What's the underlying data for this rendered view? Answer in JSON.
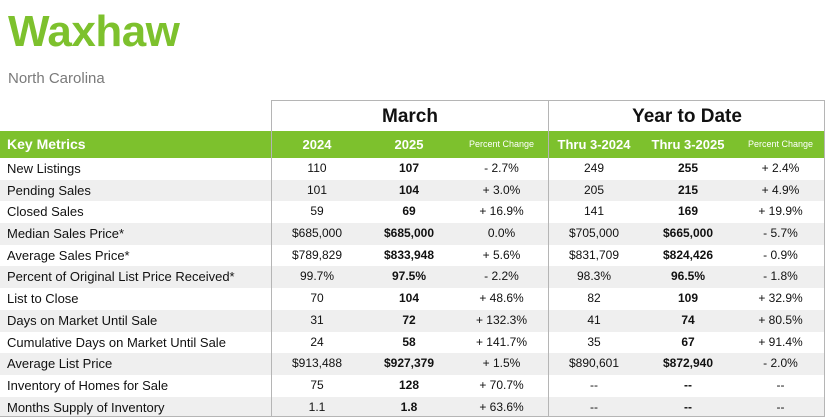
{
  "header": {
    "title": "Waxhaw",
    "subtitle": "North Carolina"
  },
  "groups": {
    "march": "March",
    "ytd": "Year to Date"
  },
  "columns": {
    "key": "Key Metrics",
    "m_2024": "2024",
    "m_2025": "2025",
    "m_pct": "Percent Change",
    "y_2024": "Thru 3-2024",
    "y_2025": "Thru 3-2025",
    "y_pct": "Percent Change"
  },
  "rows": [
    {
      "label": "New Listings",
      "m24": "110",
      "m25": "107",
      "mpct": "- 2.7%",
      "y24": "249",
      "y25": "255",
      "ypct": "+ 2.4%"
    },
    {
      "label": "Pending Sales",
      "m24": "101",
      "m25": "104",
      "mpct": "+ 3.0%",
      "y24": "205",
      "y25": "215",
      "ypct": "+ 4.9%"
    },
    {
      "label": "Closed Sales",
      "m24": "59",
      "m25": "69",
      "mpct": "+ 16.9%",
      "y24": "141",
      "y25": "169",
      "ypct": "+ 19.9%"
    },
    {
      "label": "Median Sales Price*",
      "m24": "$685,000",
      "m25": "$685,000",
      "mpct": "0.0%",
      "y24": "$705,000",
      "y25": "$665,000",
      "ypct": "- 5.7%"
    },
    {
      "label": "Average Sales Price*",
      "m24": "$789,829",
      "m25": "$833,948",
      "mpct": "+ 5.6%",
      "y24": "$831,709",
      "y25": "$824,426",
      "ypct": "- 0.9%"
    },
    {
      "label": "Percent of Original List Price Received*",
      "m24": "99.7%",
      "m25": "97.5%",
      "mpct": "- 2.2%",
      "y24": "98.3%",
      "y25": "96.5%",
      "ypct": "- 1.8%"
    },
    {
      "label": "List to Close",
      "m24": "70",
      "m25": "104",
      "mpct": "+ 48.6%",
      "y24": "82",
      "y25": "109",
      "ypct": "+ 32.9%"
    },
    {
      "label": "Days on Market Until Sale",
      "m24": "31",
      "m25": "72",
      "mpct": "+ 132.3%",
      "y24": "41",
      "y25": "74",
      "ypct": "+ 80.5%"
    },
    {
      "label": "Cumulative Days on Market Until Sale",
      "m24": "24",
      "m25": "58",
      "mpct": "+ 141.7%",
      "y24": "35",
      "y25": "67",
      "ypct": "+ 91.4%"
    },
    {
      "label": "Average List Price",
      "m24": "$913,488",
      "m25": "$927,379",
      "mpct": "+ 1.5%",
      "y24": "$890,601",
      "y25": "$872,940",
      "ypct": "- 2.0%"
    },
    {
      "label": "Inventory of Homes for Sale",
      "m24": "75",
      "m25": "128",
      "mpct": "+ 70.7%",
      "y24": "--",
      "y25": "--",
      "ypct": "--"
    },
    {
      "label": "Months Supply of Inventory",
      "m24": "1.1",
      "m25": "1.8",
      "mpct": "+ 63.6%",
      "y24": "--",
      "y25": "--",
      "ypct": "--"
    }
  ],
  "colors": {
    "accent": "#7dc12d",
    "subtitle": "#7a7a7a",
    "row_alt": "#efefef"
  }
}
